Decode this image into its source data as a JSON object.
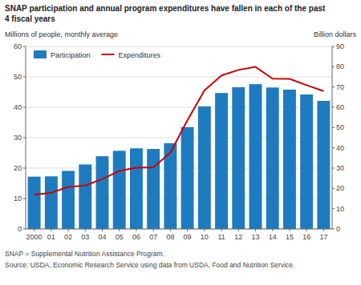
{
  "chart_data": {
    "type": "bar",
    "title": "SNAP participation and annual program expenditures have fallen in each of the past\n4 fiscal years",
    "categories": [
      "2000",
      "01",
      "02",
      "03",
      "04",
      "05",
      "06",
      "07",
      "08",
      "09",
      "10",
      "11",
      "12",
      "13",
      "14",
      "15",
      "16",
      "17"
    ],
    "series": [
      {
        "name": "Participation",
        "type": "bar",
        "color": "#1f7bbf",
        "values": [
          17.2,
          17.3,
          19.1,
          21.2,
          23.9,
          25.7,
          26.5,
          26.3,
          28.2,
          33.5,
          40.3,
          44.7,
          46.6,
          47.6,
          46.5,
          45.8,
          44.2,
          42.1
        ]
      },
      {
        "name": "Expenditures",
        "type": "line",
        "axis": "y2",
        "color": "#cc0000",
        "values": [
          17.0,
          17.8,
          20.7,
          21.4,
          24.6,
          28.6,
          30.2,
          30.4,
          37.6,
          53.6,
          68.3,
          75.7,
          78.4,
          79.9,
          74.1,
          74.0,
          70.9,
          68.0
        ]
      }
    ],
    "ylim": [
      0,
      60
    ],
    "yticks": [
      0,
      10,
      20,
      30,
      40,
      50,
      60
    ],
    "y2lim": [
      0,
      90
    ],
    "y2ticks": [
      0,
      10,
      20,
      30,
      40,
      50,
      60,
      70,
      80,
      90
    ],
    "ylabel": "Millions of people, monthly average",
    "y2label": "Billion dollars",
    "grid": true,
    "legend": "upper left",
    "annotations": [
      "SNAP = Supplemental Nutrition Assistance Program.",
      "Source: USDA, Economic Research Service using data from USDA, Food and Nutrition Service."
    ]
  }
}
